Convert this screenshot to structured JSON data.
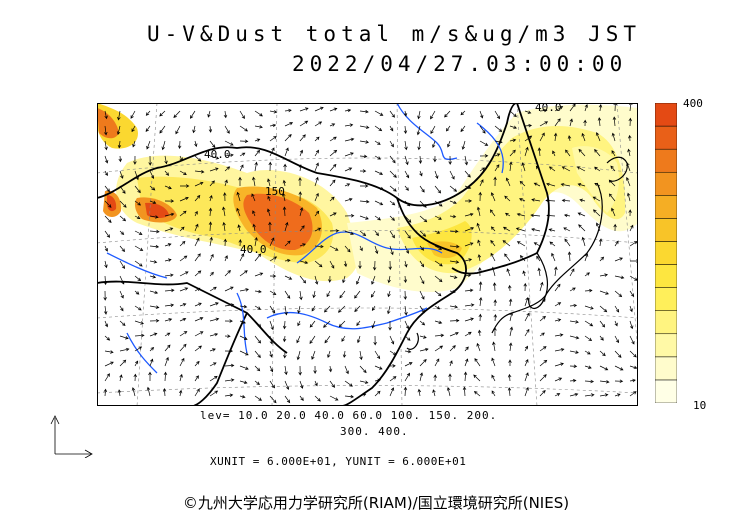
{
  "title": "U-V&Dust total m/s&ug/m3 JST",
  "timestamp": "2022/04/27.03:00:00",
  "legend": {
    "max_label": "400",
    "min_label": "10",
    "colors": [
      "#ffffe6",
      "#fffccc",
      "#fff9a6",
      "#fff480",
      "#ffef5a",
      "#fde640",
      "#fbd830",
      "#f8c428",
      "#f5ae24",
      "#f29420",
      "#ee7a1c",
      "#e96018",
      "#e44a14"
    ]
  },
  "levels": {
    "line1": "lev= 10.0 20.0 40.0 60.0 100. 150. 200.",
    "line2": "300. 400."
  },
  "units_text": "XUNIT = 6.000E+01, YUNIT = 6.000E+01",
  "credit": "©九州大学応用力学研究所(RIAM)/国立環境研究所(NIES)",
  "map": {
    "contour_labels": [
      "40.0",
      "150",
      "40.0",
      "40.0"
    ],
    "colors": {
      "water": "#1e5aff",
      "coast": "#000000",
      "grid": "#777777"
    }
  }
}
